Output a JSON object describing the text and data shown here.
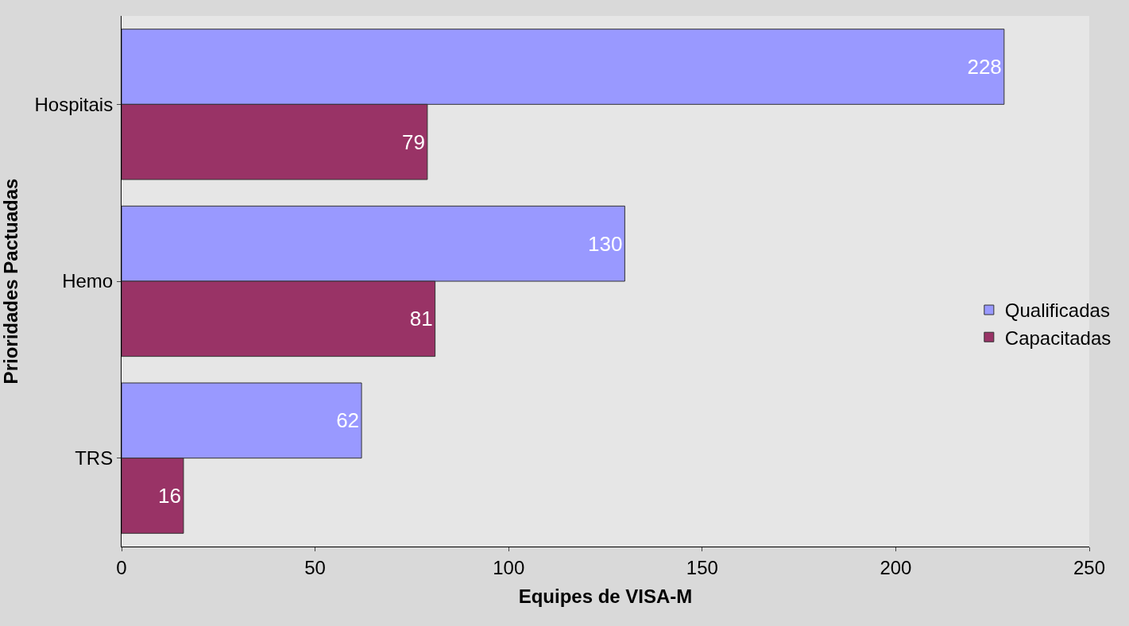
{
  "chart_data": {
    "type": "bar",
    "orientation": "horizontal",
    "xlabel": "Equipes de VISA-M",
    "ylabel": "Prioridades Pactuadas",
    "categories": [
      "Hospitais",
      "Hemo",
      "TRS"
    ],
    "series": [
      {
        "name": "Qualificadas",
        "color": "#9999ff",
        "values": [
          228,
          130,
          62
        ]
      },
      {
        "name": "Capacitadas",
        "color": "#993366",
        "values": [
          79,
          81,
          16
        ]
      }
    ],
    "xlim": [
      0,
      250
    ],
    "xticks": [
      0,
      50,
      100,
      150,
      200,
      250
    ],
    "data_labels": true,
    "legend": "right",
    "grid": false
  }
}
